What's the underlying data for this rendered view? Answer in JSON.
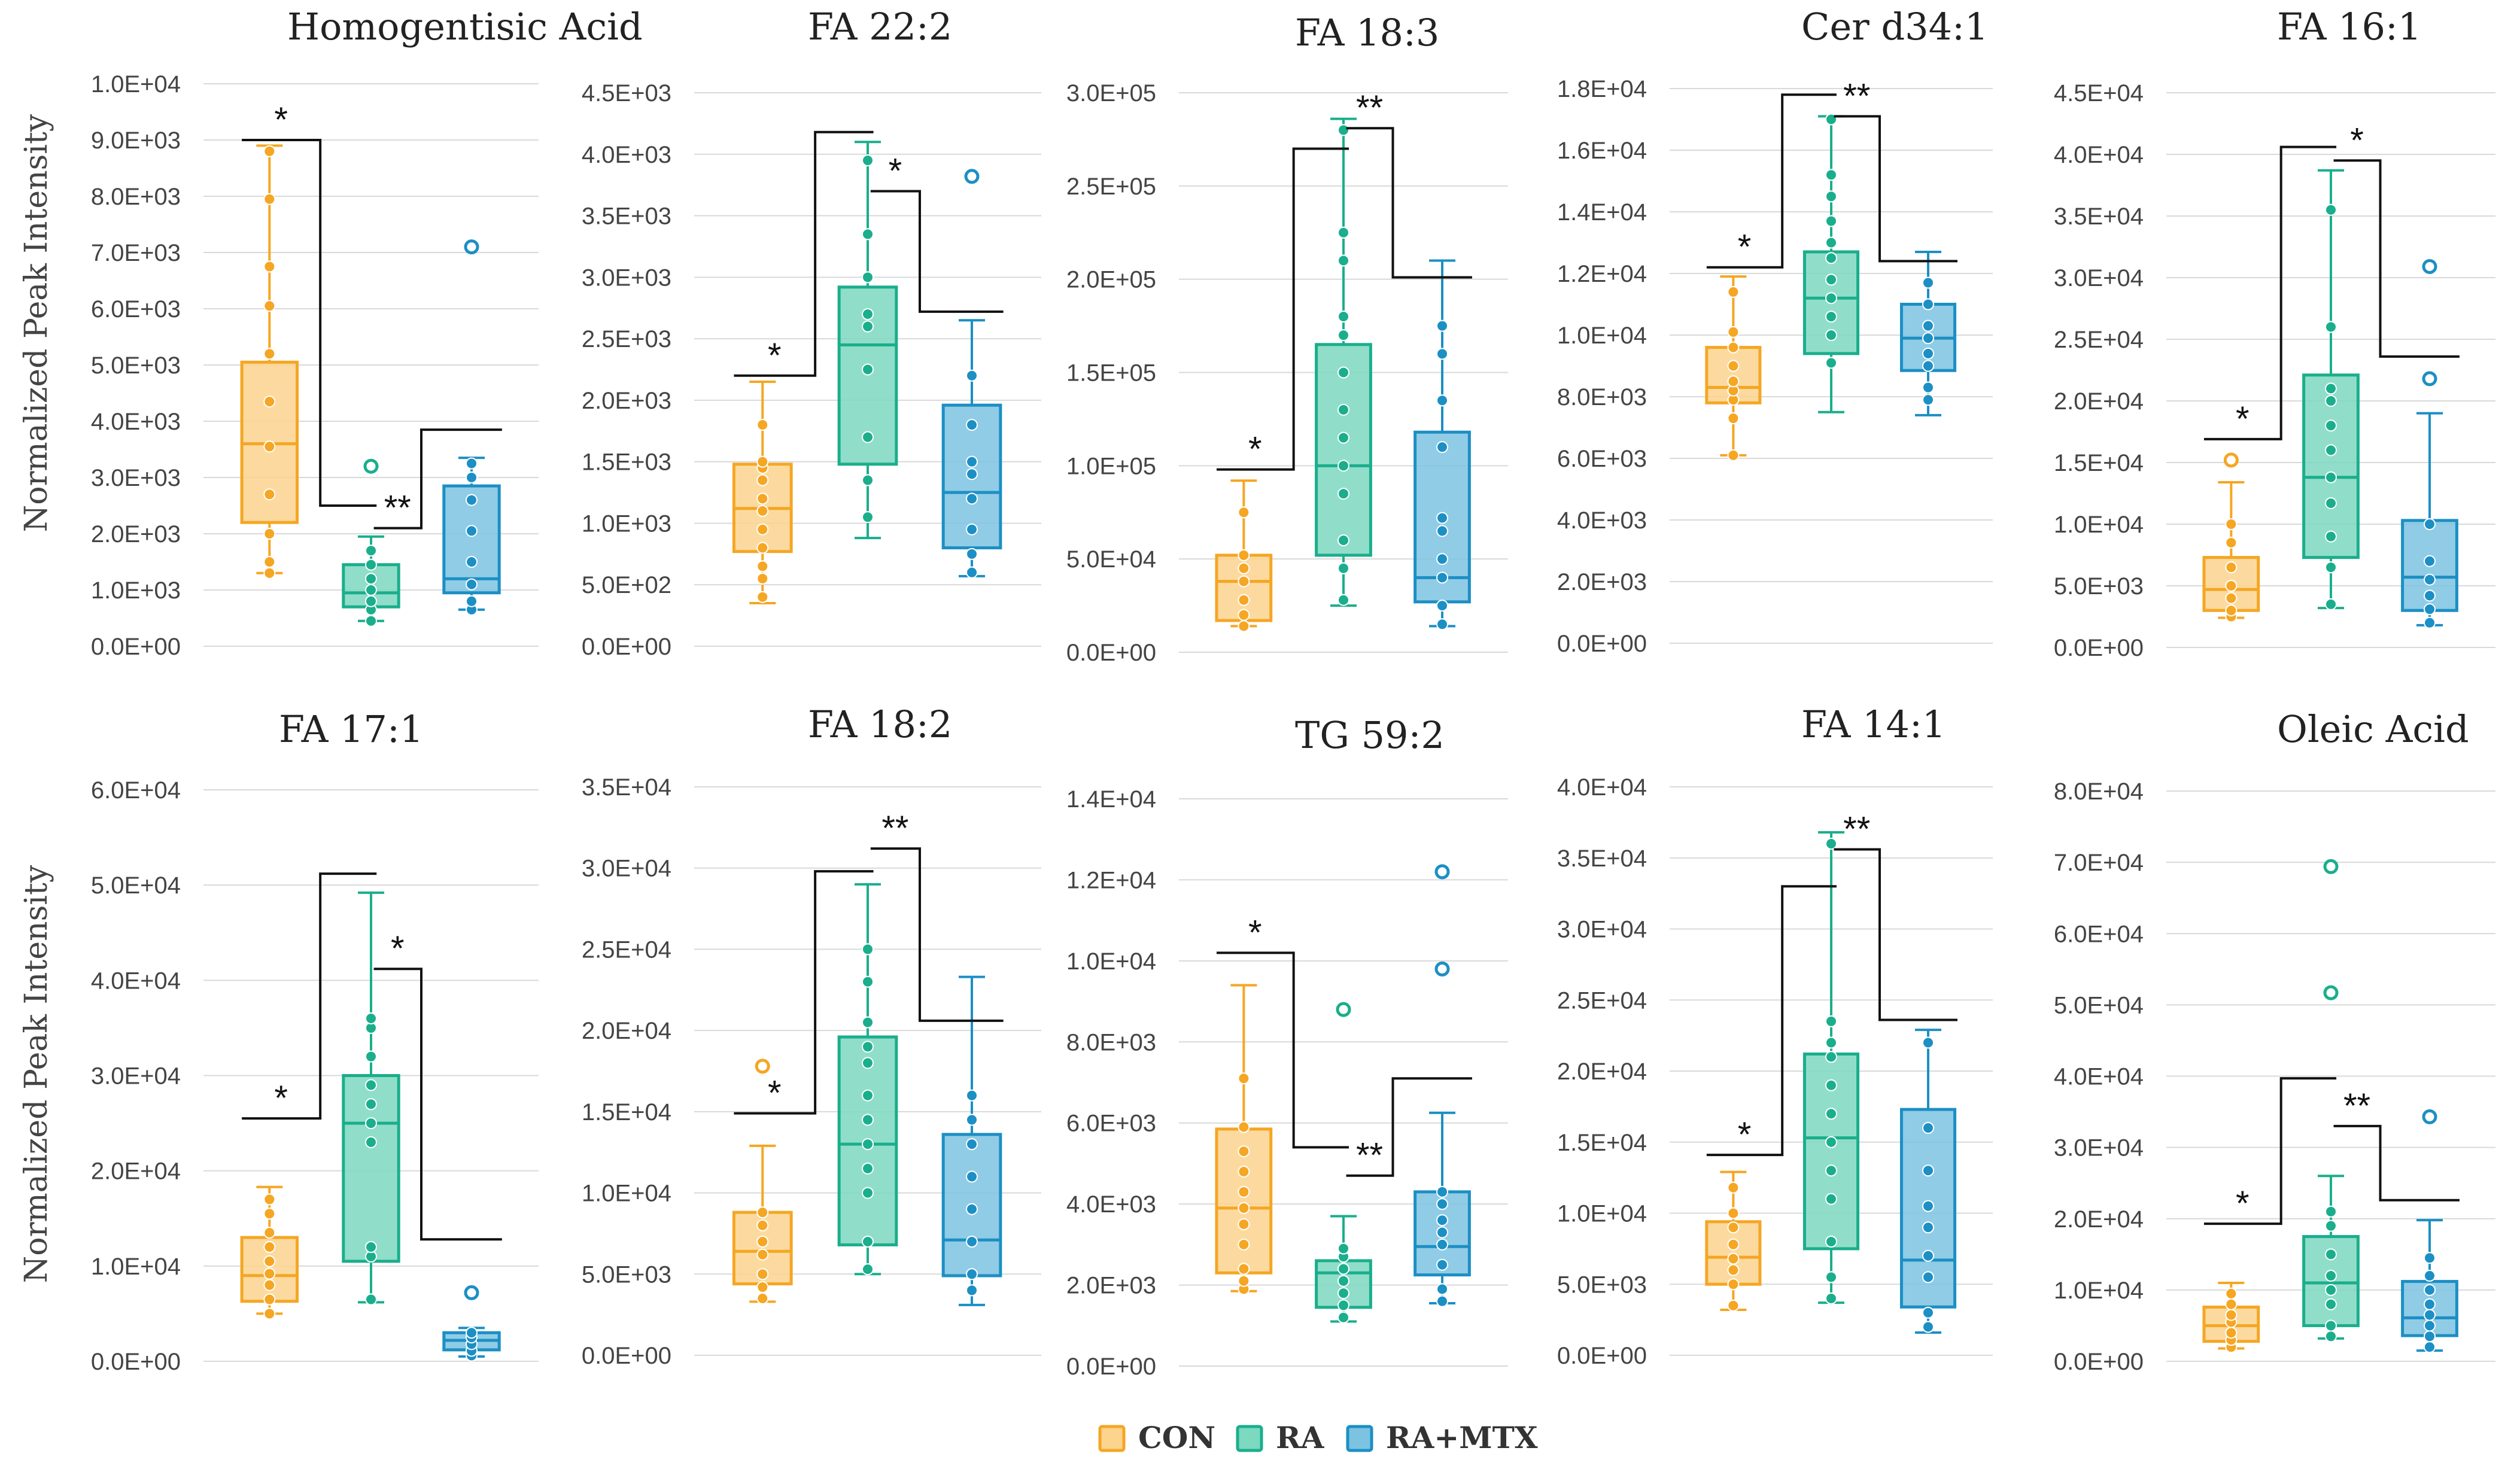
{
  "figure": {
    "ylabel": "Normalized Peak Intensity",
    "groups": [
      {
        "name": "CON",
        "color": "#F5A623",
        "fill": "#FBD48E"
      },
      {
        "name": "RA",
        "color": "#1AAE8C",
        "fill": "#7DD8C0"
      },
      {
        "name": "RA+MTX",
        "color": "#1C8FC4",
        "fill": "#7CC3E2"
      }
    ]
  },
  "chart_data": [
    {
      "type": "box",
      "title": "Homogentisic Acid",
      "yticks": [
        "0.0E+00",
        "1.0E+03",
        "2.0E+03",
        "3.0E+03",
        "4.0E+03",
        "5.0E+03",
        "6.0E+03",
        "7.0E+03",
        "8.0E+03",
        "9.0E+03",
        "1.0E+04"
      ],
      "ylim": [
        0,
        10000
      ],
      "boxes": [
        {
          "min": 1300,
          "q1": 2200,
          "median": 3600,
          "q3": 5050,
          "max": 8900,
          "points": [
            1300,
            1500,
            2000,
            2700,
            3550,
            4350,
            5200,
            6050,
            6750,
            7950,
            8800
          ],
          "outliers": []
        },
        {
          "min": 450,
          "q1": 700,
          "median": 950,
          "q3": 1450,
          "max": 1950,
          "points": [
            450,
            650,
            800,
            1000,
            1200,
            1450,
            1700
          ],
          "outliers": [
            3200
          ]
        },
        {
          "min": 650,
          "q1": 950,
          "median": 1200,
          "q3": 2850,
          "max": 3350,
          "points": [
            650,
            800,
            1100,
            1500,
            2050,
            2600,
            3000,
            3250
          ],
          "outliers": [
            7100
          ]
        }
      ],
      "sig": [
        {
          "from": 0,
          "to": 1,
          "label": "*",
          "y1": 9000,
          "y2": 2500
        },
        {
          "from": 1,
          "to": 2,
          "label": "**",
          "y1": 2100,
          "y2": 3850
        }
      ]
    },
    {
      "type": "box",
      "title": "FA 22:2",
      "yticks": [
        "0.0E+00",
        "5.0E+02",
        "1.0E+03",
        "1.5E+03",
        "2.0E+03",
        "2.5E+03",
        "3.0E+03",
        "3.5E+03",
        "4.0E+03",
        "4.5E+03"
      ],
      "ylim": [
        0,
        4500
      ],
      "boxes": [
        {
          "min": 350,
          "q1": 770,
          "median": 1120,
          "q3": 1480,
          "max": 2150,
          "points": [
            400,
            550,
            650,
            800,
            950,
            1100,
            1200,
            1350,
            1450,
            1500,
            1800
          ],
          "outliers": []
        },
        {
          "min": 880,
          "q1": 1480,
          "median": 2450,
          "q3": 2920,
          "max": 4100,
          "points": [
            1050,
            1350,
            1700,
            2250,
            2600,
            2700,
            3000,
            3350,
            3950
          ],
          "outliers": []
        },
        {
          "min": 570,
          "q1": 800,
          "median": 1250,
          "q3": 1960,
          "max": 2650,
          "points": [
            600,
            750,
            950,
            1200,
            1400,
            1500,
            1800,
            2200
          ],
          "outliers": [
            3820
          ]
        }
      ],
      "sig": [
        {
          "from": 0,
          "to": 1,
          "label": "*",
          "y1": 2200,
          "y2": 4180
        },
        {
          "from": 1,
          "to": 2,
          "label": "*",
          "y1": 3700,
          "y2": 2720
        }
      ]
    },
    {
      "type": "box",
      "title": "FA 18:3",
      "yticks": [
        "0.0E+00",
        "5.0E+04",
        "1.0E+05",
        "1.5E+05",
        "2.0E+05",
        "2.5E+05",
        "3.0E+05"
      ],
      "ylim": [
        0,
        300000
      ],
      "boxes": [
        {
          "min": 14000,
          "q1": 17000,
          "median": 38000,
          "q3": 52000,
          "max": 92000,
          "points": [
            14000,
            20000,
            28000,
            38000,
            45000,
            52000,
            75000
          ],
          "outliers": []
        },
        {
          "min": 25000,
          "q1": 52000,
          "median": 100000,
          "q3": 165000,
          "max": 286000,
          "points": [
            28000,
            45000,
            60000,
            85000,
            100000,
            115000,
            130000,
            150000,
            170000,
            180000,
            210000,
            225000,
            280000
          ],
          "outliers": []
        },
        {
          "min": 14000,
          "q1": 27000,
          "median": 40000,
          "q3": 118000,
          "max": 210000,
          "points": [
            15000,
            25000,
            40000,
            50000,
            65000,
            72000,
            110000,
            135000,
            160000,
            175000
          ],
          "outliers": []
        }
      ],
      "sig": [
        {
          "from": 0,
          "to": 1,
          "label": "*",
          "y1": 98000,
          "y2": 270000
        },
        {
          "from": 1,
          "to": 2,
          "label": "**",
          "y1": 281000,
          "y2": 201000
        }
      ]
    },
    {
      "type": "box",
      "title": "Cer d34:1",
      "yticks": [
        "0.0E+00",
        "2.0E+03",
        "4.0E+03",
        "6.0E+03",
        "8.0E+03",
        "1.0E+04",
        "1.2E+04",
        "1.4E+04",
        "1.6E+04",
        "1.8E+04"
      ],
      "ylim": [
        0,
        18000
      ],
      "boxes": [
        {
          "min": 6100,
          "q1": 7800,
          "median": 8300,
          "q3": 9600,
          "max": 11900,
          "points": [
            6100,
            7300,
            7900,
            8200,
            8500,
            9000,
            9600,
            10100,
            11400
          ],
          "outliers": []
        },
        {
          "min": 7500,
          "q1": 9400,
          "median": 11200,
          "q3": 12700,
          "max": 17100,
          "points": [
            9100,
            10000,
            10600,
            11200,
            11800,
            12500,
            13000,
            13700,
            14500,
            15200,
            17000
          ],
          "outliers": []
        },
        {
          "min": 7400,
          "q1": 8850,
          "median": 9900,
          "q3": 11000,
          "max": 12700,
          "points": [
            7900,
            8300,
            9000,
            9400,
            9900,
            10300,
            11000,
            11700
          ],
          "outliers": []
        }
      ],
      "sig": [
        {
          "from": 0,
          "to": 1,
          "label": "*",
          "y1": 12200,
          "y2": 17800
        },
        {
          "from": 1,
          "to": 2,
          "label": "**",
          "y1": 17100,
          "y2": 12400
        }
      ]
    },
    {
      "type": "box",
      "title": "FA 16:1",
      "yticks": [
        "0.0E+00",
        "5.0E+03",
        "1.0E+04",
        "1.5E+04",
        "2.0E+04",
        "2.5E+04",
        "3.0E+04",
        "3.5E+04",
        "4.0E+04",
        "4.5E+04"
      ],
      "ylim": [
        0,
        45000
      ],
      "boxes": [
        {
          "min": 2400,
          "q1": 3000,
          "median": 4700,
          "q3": 7300,
          "max": 13400,
          "points": [
            2500,
            3000,
            4000,
            5000,
            6500,
            8500,
            10000
          ],
          "outliers": [
            15200
          ]
        },
        {
          "min": 3200,
          "q1": 7300,
          "median": 13800,
          "q3": 22100,
          "max": 38700,
          "points": [
            3500,
            6500,
            9000,
            11700,
            13800,
            16000,
            18000,
            20000,
            21000,
            26000,
            35500
          ],
          "outliers": []
        },
        {
          "min": 1800,
          "q1": 3000,
          "median": 5700,
          "q3": 10300,
          "max": 19000,
          "points": [
            2000,
            3100,
            4200,
            5500,
            7000,
            10000
          ],
          "outliers": [
            21800,
            30900
          ]
        }
      ],
      "sig": [
        {
          "from": 0,
          "to": 1,
          "label": "*",
          "y1": 16900,
          "y2": 40600
        },
        {
          "from": 1,
          "to": 2,
          "label": "*",
          "y1": 39500,
          "y2": 23600
        }
      ]
    },
    {
      "type": "box",
      "title": "FA 17:1",
      "yticks": [
        "0.0E+00",
        "1.0E+04",
        "2.0E+04",
        "3.0E+04",
        "4.0E+04",
        "5.0E+04",
        "6.0E+04"
      ],
      "ylim": [
        0,
        60000
      ],
      "boxes": [
        {
          "min": 5000,
          "q1": 6300,
          "median": 9000,
          "q3": 13000,
          "max": 18300,
          "points": [
            5000,
            6500,
            8000,
            9200,
            10500,
            12000,
            13500,
            15500,
            17000
          ],
          "outliers": []
        },
        {
          "min": 6200,
          "q1": 10500,
          "median": 25000,
          "q3": 30000,
          "max": 49200,
          "points": [
            6500,
            11000,
            12000,
            23000,
            25000,
            27000,
            29000,
            32000,
            35000,
            36000
          ],
          "outliers": []
        },
        {
          "min": 500,
          "q1": 1200,
          "median": 2200,
          "q3": 3000,
          "max": 3500,
          "points": [
            600,
            1100,
            1800,
            2500,
            3000
          ],
          "outliers": [
            7200
          ]
        }
      ],
      "sig": [
        {
          "from": 0,
          "to": 1,
          "label": "*",
          "y1": 25500,
          "y2": 51200
        },
        {
          "from": 1,
          "to": 2,
          "label": "*",
          "y1": 41200,
          "y2": 12800
        }
      ]
    },
    {
      "type": "box",
      "title": "FA 18:2",
      "yticks": [
        "0.0E+00",
        "5.0E+03",
        "1.0E+04",
        "1.5E+04",
        "2.0E+04",
        "2.5E+04",
        "3.0E+04",
        "3.5E+04"
      ],
      "ylim": [
        0,
        35000
      ],
      "boxes": [
        {
          "min": 3300,
          "q1": 4400,
          "median": 6400,
          "q3": 8800,
          "max": 12900,
          "points": [
            3500,
            4200,
            5000,
            6200,
            7000,
            8000,
            8800
          ],
          "outliers": [
            17800
          ]
        },
        {
          "min": 5000,
          "q1": 6800,
          "median": 13000,
          "q3": 19600,
          "max": 29000,
          "points": [
            5300,
            7000,
            10000,
            11500,
            13000,
            14500,
            16000,
            18000,
            19000,
            20500,
            23000,
            25000
          ],
          "outliers": []
        },
        {
          "min": 3100,
          "q1": 4900,
          "median": 7100,
          "q3": 13600,
          "max": 23300,
          "points": [
            4000,
            5000,
            7000,
            9000,
            11000,
            13000,
            14500,
            16000
          ],
          "outliers": []
        }
      ],
      "sig": [
        {
          "from": 0,
          "to": 1,
          "label": "*",
          "y1": 14900,
          "y2": 29800
        },
        {
          "from": 1,
          "to": 2,
          "label": "**",
          "y1": 31200,
          "y2": 20600
        }
      ]
    },
    {
      "type": "box",
      "title": "TG 59:2",
      "yticks": [
        "0.0E+00",
        "2.0E+03",
        "4.0E+03",
        "6.0E+03",
        "8.0E+03",
        "1.0E+04",
        "1.2E+04",
        "1.4E+04"
      ],
      "ylim": [
        0,
        14000
      ],
      "boxes": [
        {
          "min": 1850,
          "q1": 2300,
          "median": 3900,
          "q3": 5850,
          "max": 9400,
          "points": [
            1900,
            2100,
            2400,
            3000,
            3500,
            3900,
            4300,
            4800,
            5300,
            5900,
            7100
          ],
          "outliers": []
        },
        {
          "min": 1100,
          "q1": 1450,
          "median": 2300,
          "q3": 2600,
          "max": 3700,
          "points": [
            1200,
            1500,
            1800,
            2100,
            2400,
            2700,
            2900
          ],
          "outliers": [
            8800
          ]
        },
        {
          "min": 1550,
          "q1": 2250,
          "median": 2950,
          "q3": 4300,
          "max": 6250,
          "points": [
            1600,
            1900,
            2500,
            3000,
            3300,
            3600,
            4000,
            4300
          ],
          "outliers": [
            9800,
            12200
          ]
        }
      ],
      "sig": [
        {
          "from": 0,
          "to": 1,
          "label": "*",
          "y1": 10200,
          "y2": 5400
        },
        {
          "from": 1,
          "to": 2,
          "label": "**",
          "y1": 4700,
          "y2": 7100
        }
      ]
    },
    {
      "type": "box",
      "title": "FA 14:1",
      "yticks": [
        "0.0E+00",
        "5.0E+03",
        "1.0E+04",
        "1.5E+04",
        "2.0E+04",
        "2.5E+04",
        "3.0E+04",
        "3.5E+04",
        "4.0E+04"
      ],
      "ylim": [
        0,
        40000
      ],
      "boxes": [
        {
          "min": 3200,
          "q1": 5000,
          "median": 6900,
          "q3": 9400,
          "max": 12900,
          "points": [
            3500,
            5000,
            6000,
            6800,
            7800,
            9000,
            10000,
            11800
          ],
          "outliers": []
        },
        {
          "min": 3700,
          "q1": 7500,
          "median": 15300,
          "q3": 21200,
          "max": 36800,
          "points": [
            4000,
            5500,
            8000,
            11000,
            13000,
            15000,
            17000,
            19000,
            21000,
            22000,
            23500,
            36000
          ],
          "outliers": []
        },
        {
          "min": 1600,
          "q1": 3400,
          "median": 6700,
          "q3": 17300,
          "max": 22900,
          "points": [
            2000,
            3000,
            5500,
            7000,
            9000,
            10500,
            13000,
            16000,
            22000
          ],
          "outliers": []
        }
      ],
      "sig": [
        {
          "from": 0,
          "to": 1,
          "label": "*",
          "y1": 14100,
          "y2": 33000
        },
        {
          "from": 1,
          "to": 2,
          "label": "**",
          "y1": 35600,
          "y2": 23600
        }
      ]
    },
    {
      "type": "box",
      "title": "Oleic Acid",
      "yticks": [
        "0.0E+00",
        "1.0E+04",
        "2.0E+04",
        "3.0E+04",
        "4.0E+04",
        "5.0E+04",
        "6.0E+04",
        "7.0E+04",
        "8.0E+04"
      ],
      "ylim": [
        0,
        80000
      ],
      "boxes": [
        {
          "min": 1800,
          "q1": 2800,
          "median": 5000,
          "q3": 7600,
          "max": 11000,
          "points": [
            2000,
            3000,
            4000,
            5500,
            6500,
            8000,
            9500
          ],
          "outliers": []
        },
        {
          "min": 3200,
          "q1": 5000,
          "median": 11000,
          "q3": 17500,
          "max": 26000,
          "points": [
            3500,
            5000,
            8000,
            10000,
            12000,
            15000,
            19000,
            21000
          ],
          "outliers": [
            51700,
            69400
          ]
        },
        {
          "min": 1500,
          "q1": 3600,
          "median": 6100,
          "q3": 11200,
          "max": 19800,
          "points": [
            2000,
            3500,
            5000,
            6500,
            8000,
            10000,
            12000,
            14500
          ],
          "outliers": [
            34300
          ]
        }
      ],
      "sig": [
        {
          "from": 0,
          "to": 1,
          "label": "*",
          "y1": 19300,
          "y2": 39700
        },
        {
          "from": 1,
          "to": 2,
          "label": "**",
          "y1": 33000,
          "y2": 22600
        }
      ]
    }
  ]
}
